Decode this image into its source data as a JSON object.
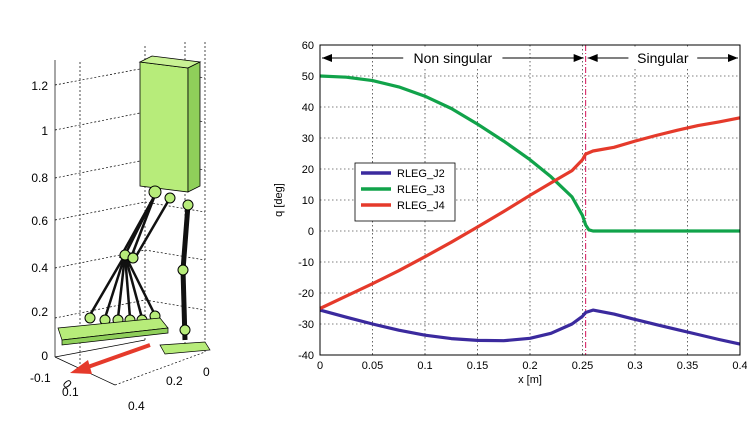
{
  "robot_plot": {
    "z_ticks": [
      "1.2",
      "1",
      "0.8",
      "0.6",
      "0.4",
      "0.2",
      "0"
    ],
    "x_ticks": [
      "-0.1",
      "0",
      "0.1",
      "0.4"
    ],
    "y_ticks": [
      "0.2",
      "0"
    ],
    "colors": {
      "body": "#b7ec7a",
      "link": "#111111",
      "arrow": "#e53a2b",
      "grid": "#000000"
    }
  },
  "chart_data": {
    "type": "line",
    "xlabel": "x [m]",
    "ylabel": "q [deg]",
    "xlim": [
      0,
      0.4
    ],
    "ylim": [
      -40,
      60
    ],
    "x_ticks": [
      0,
      0.05,
      0.1,
      0.15,
      0.2,
      0.25,
      0.3,
      0.35,
      0.4
    ],
    "x_tick_labels": [
      "0",
      "0.05",
      "0.1",
      "0.15",
      "0.2",
      "0.25",
      "0.3",
      "0.35",
      "0.4"
    ],
    "y_ticks": [
      -40,
      -30,
      -20,
      -10,
      0,
      10,
      20,
      30,
      40,
      50,
      60
    ],
    "y_tick_labels": [
      "-40",
      "-30",
      "-20",
      "-10",
      "0",
      "10",
      "20",
      "30",
      "40",
      "50",
      "60"
    ],
    "grid": true,
    "legend_position": "center-left",
    "singular_boundary_x": 0.253,
    "regions": [
      {
        "label": "Non singular",
        "x_start": 0,
        "x_end": 0.253
      },
      {
        "label": "Singular",
        "x_start": 0.253,
        "x_end": 0.4
      }
    ],
    "series": [
      {
        "name": "RLEG_J2",
        "color": "#3b2a9e",
        "x": [
          0,
          0.025,
          0.05,
          0.075,
          0.1,
          0.125,
          0.15,
          0.175,
          0.2,
          0.22,
          0.24,
          0.25,
          0.253,
          0.26,
          0.28,
          0.3,
          0.32,
          0.34,
          0.36,
          0.38,
          0.4
        ],
        "y": [
          -25.5,
          -27.8,
          -30,
          -32,
          -33.6,
          -34.7,
          -35.3,
          -35.4,
          -34.6,
          -33,
          -30,
          -27.5,
          -26.3,
          -25.5,
          -26.8,
          -28.5,
          -30.2,
          -31.8,
          -33.4,
          -35,
          -36.5
        ]
      },
      {
        "name": "RLEG_J3",
        "color": "#11a34a",
        "x": [
          0,
          0.025,
          0.05,
          0.075,
          0.1,
          0.125,
          0.15,
          0.175,
          0.2,
          0.22,
          0.24,
          0.25,
          0.253,
          0.256,
          0.26,
          0.28,
          0.3,
          0.32,
          0.34,
          0.36,
          0.38,
          0.4
        ],
        "y": [
          50,
          49.6,
          48.5,
          46.5,
          43.5,
          39.5,
          34.5,
          29,
          23,
          17.5,
          11,
          5,
          2,
          0.4,
          0,
          0,
          0,
          0,
          0,
          0,
          0,
          0
        ]
      },
      {
        "name": "RLEG_J4",
        "color": "#e53a2b",
        "x": [
          0,
          0.025,
          0.05,
          0.075,
          0.1,
          0.125,
          0.15,
          0.175,
          0.2,
          0.22,
          0.24,
          0.25,
          0.253,
          0.26,
          0.28,
          0.3,
          0.32,
          0.34,
          0.36,
          0.38,
          0.4
        ],
        "y": [
          -25,
          -21,
          -17,
          -12.8,
          -8.3,
          -3.6,
          1.3,
          6.3,
          11.5,
          15.5,
          19.5,
          23,
          24.8,
          25.8,
          27,
          29,
          30.8,
          32.5,
          34,
          35.2,
          36.5
        ]
      }
    ]
  }
}
